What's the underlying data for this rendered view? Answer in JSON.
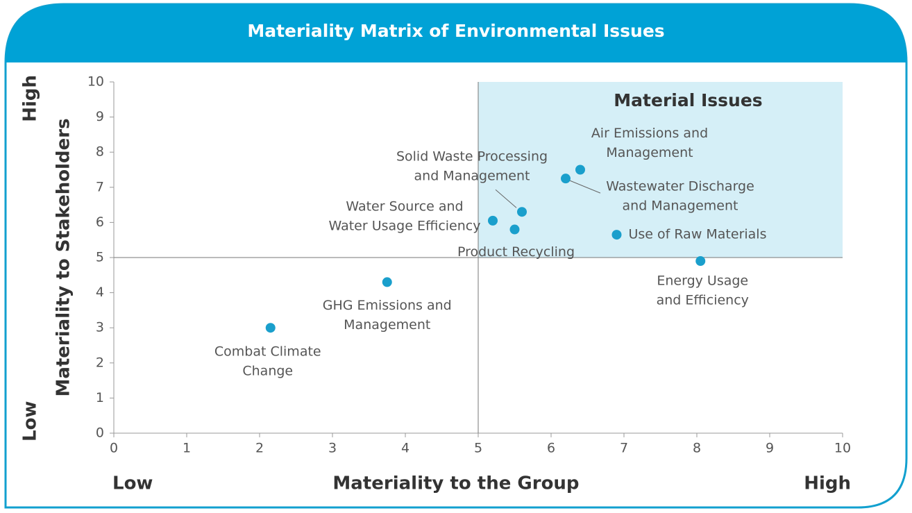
{
  "chart_data": {
    "type": "scatter",
    "title": "Materiality Matrix of Environmental Issues",
    "x_label": "Materiality to the Group",
    "y_label": "Materiality to Stakeholders",
    "x_range_labels": [
      "Low",
      "High"
    ],
    "y_range_labels": [
      "Low",
      "High"
    ],
    "xlim": [
      0,
      10
    ],
    "ylim": [
      0,
      10
    ],
    "xticks": [
      0,
      1,
      2,
      3,
      4,
      5,
      6,
      7,
      8,
      9,
      10
    ],
    "yticks": [
      0,
      1,
      2,
      3,
      4,
      5,
      6,
      7,
      8,
      9,
      10
    ],
    "color": "#1a9fcc",
    "highlight": {
      "x": [
        5,
        10
      ],
      "y": [
        5,
        10
      ],
      "label": "Material Issues",
      "color": "#d5eff7"
    },
    "dividers": {
      "x": 5,
      "y": 5
    },
    "points": [
      {
        "label": [
          "Combat Climate",
          "Change"
        ],
        "x": 2.15,
        "y": 3.0
      },
      {
        "label": [
          "GHG Emissions and",
          "Management"
        ],
        "x": 3.75,
        "y": 4.3
      },
      {
        "label": [
          "Water Source and",
          "Water Usage Efficiency"
        ],
        "x": 5.2,
        "y": 6.05
      },
      {
        "label": [
          "Product Recycling"
        ],
        "x": 5.5,
        "y": 5.8
      },
      {
        "label": [
          "Solid Waste Processing",
          "and Management"
        ],
        "x": 5.6,
        "y": 6.3
      },
      {
        "label": [
          "Wastewater Discharge",
          "and Management"
        ],
        "x": 6.2,
        "y": 7.25
      },
      {
        "label": [
          "Air Emissions and",
          "Management"
        ],
        "x": 6.4,
        "y": 7.5
      },
      {
        "label": [
          "Use of Raw Materials"
        ],
        "x": 6.9,
        "y": 5.65
      },
      {
        "label": [
          "Energy Usage",
          "and Efficiency"
        ],
        "x": 8.05,
        "y": 4.9
      }
    ]
  }
}
